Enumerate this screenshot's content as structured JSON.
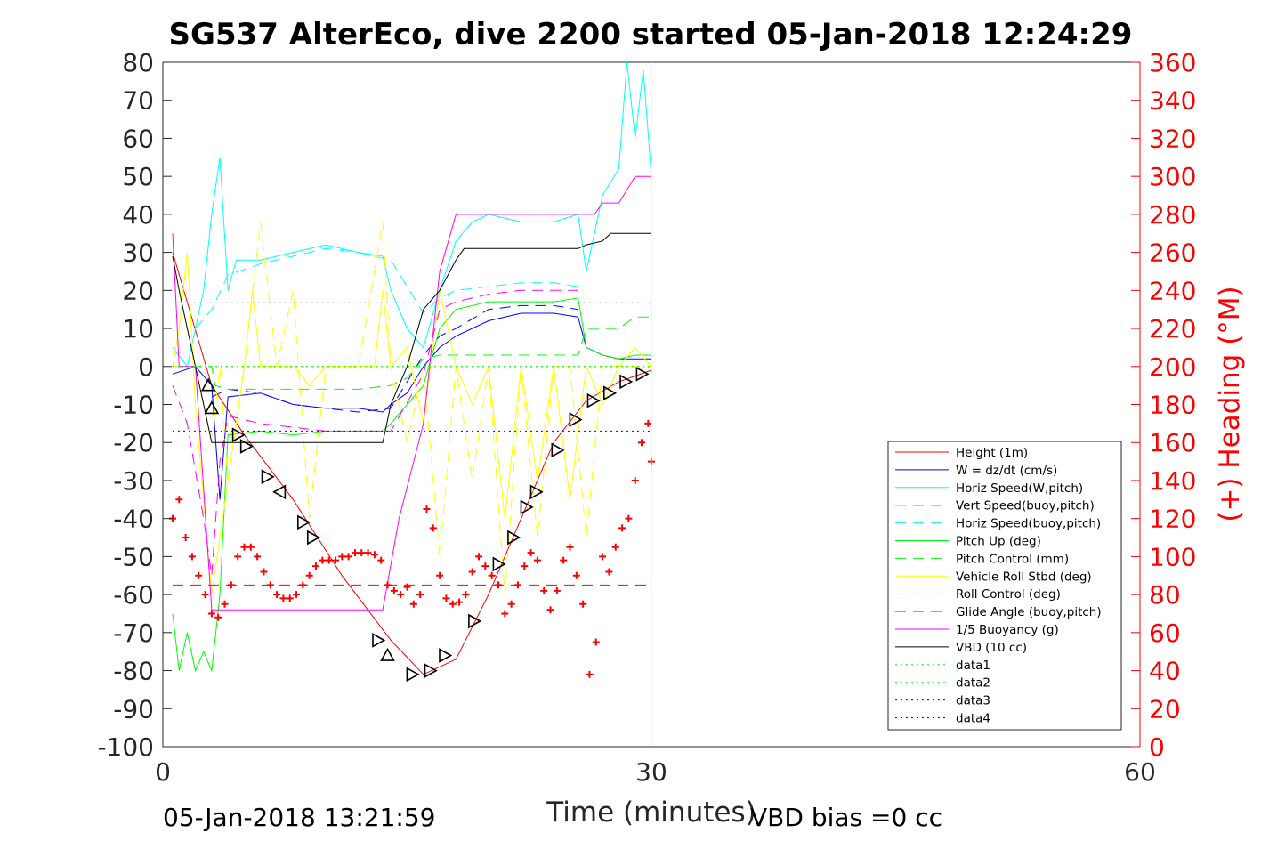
{
  "chart_data": {
    "type": "line",
    "title": "SG537 AlterEco, dive 2200 started 05-Jan-2018 12:24:29",
    "xlabel": "Time (minutes)",
    "ylabel_right": "(+) Heading (°M)",
    "footer_left": "05-Jan-2018 13:21:59",
    "footer_right": "VBD bias =0 cc",
    "xlim": [
      0,
      60
    ],
    "ylim": [
      -100,
      80
    ],
    "y2lim": [
      0,
      360
    ],
    "x_ticks": [
      0,
      30,
      60
    ],
    "x_tick_labels": [
      "0",
      "30",
      "60"
    ],
    "y_ticks": [
      -100,
      -90,
      -80,
      -70,
      -60,
      -50,
      -40,
      -30,
      -20,
      -10,
      0,
      10,
      20,
      30,
      40,
      50,
      60,
      70,
      80
    ],
    "y_tick_labels": [
      "-100",
      "-90",
      "-80",
      "-70",
      "-60",
      "-50",
      "-40",
      "-30",
      "-20",
      "-10",
      "0",
      "10",
      "20",
      "30",
      "40",
      "50",
      "60",
      "70",
      "80"
    ],
    "y2_ticks": [
      0,
      20,
      40,
      60,
      80,
      100,
      120,
      140,
      160,
      180,
      200,
      220,
      240,
      260,
      280,
      300,
      320,
      340,
      360
    ],
    "y2_tick_labels": [
      "0",
      "20",
      "40",
      "60",
      "80",
      "100",
      "120",
      "140",
      "160",
      "180",
      "200",
      "220",
      "240",
      "260",
      "280",
      "300",
      "320",
      "340",
      "360"
    ],
    "right_axis_color": "#ff0000",
    "grid": false,
    "legend_position": "lower-right",
    "legend": [
      {
        "label": "Height (1m)",
        "color": "#ff0000",
        "style": "solid"
      },
      {
        "label": "W = dz/dt (cm/s)",
        "color": "#0000ff",
        "style": "solid"
      },
      {
        "label": "Horiz Speed(W,pitch)",
        "color": "#00ffff",
        "style": "solid"
      },
      {
        "label": "Vert Speed(buoy,pitch)",
        "color": "#0000ff",
        "style": "dashed"
      },
      {
        "label": "Horiz Speed(buoy,pitch)",
        "color": "#00ffff",
        "style": "dashed"
      },
      {
        "label": "Pitch Up (deg)",
        "color": "#00ff00",
        "style": "solid"
      },
      {
        "label": "Pitch Control (mm)",
        "color": "#00ff00",
        "style": "dashed"
      },
      {
        "label": "Vehicle Roll Stbd (deg)",
        "color": "#ffff00",
        "style": "solid"
      },
      {
        "label": "Roll Control (deg)",
        "color": "#ffff00",
        "style": "dashed"
      },
      {
        "label": "Glide Angle (buoy,pitch)",
        "color": "#ff00ff",
        "style": "dashed"
      },
      {
        "label": "1/5 Buoyancy (g)",
        "color": "#ff00ff",
        "style": "solid"
      },
      {
        "label": "VBD (10 cc)",
        "color": "#000000",
        "style": "solid"
      },
      {
        "label": "data1",
        "color": "#00ff00",
        "style": "dotted"
      },
      {
        "label": "data2",
        "color": "#00ff00",
        "style": "dotted"
      },
      {
        "label": "data3",
        "color": "#0000ff",
        "style": "dotted"
      },
      {
        "label": "data4",
        "color": "#0000ff",
        "style": "dotted"
      }
    ],
    "series": [
      {
        "name": "Height (1m)",
        "axis": "left",
        "color": "#ff0000",
        "x": [
          0.6,
          3,
          5,
          8,
          11,
          14,
          16,
          18,
          20,
          22,
          24,
          26,
          28,
          30
        ],
        "y": [
          30,
          -5,
          -18,
          -35,
          -55,
          -72,
          -81,
          -77,
          -60,
          -40,
          -20,
          -9,
          -4,
          -1
        ]
      },
      {
        "name": "W = dz/dt (cm/s)",
        "axis": "left",
        "color": "#0000ff",
        "x": [
          0.6,
          2,
          3,
          3.5,
          4,
          6,
          8,
          10,
          12,
          13.5,
          14,
          15,
          16,
          17,
          18,
          20,
          22,
          24,
          25.5,
          26,
          27,
          28,
          29,
          30
        ],
        "y": [
          -2,
          0,
          -5,
          -35,
          -8,
          -7,
          -10,
          -11,
          -11,
          -12,
          -10,
          -7,
          0,
          5,
          8,
          12,
          14,
          14,
          13,
          5,
          3,
          2,
          2,
          2
        ]
      },
      {
        "name": "Horiz Speed(W,pitch)",
        "axis": "left",
        "color": "#00ffff",
        "x": [
          0.6,
          1.5,
          2.5,
          3,
          3.5,
          4,
          4.5,
          6,
          8,
          10,
          12,
          13.5,
          14,
          15,
          16,
          17,
          18,
          19,
          20,
          22,
          24,
          25.5,
          26,
          27,
          28,
          28.5,
          29,
          29.5,
          30
        ],
        "y": [
          5,
          0,
          20,
          40,
          55,
          20,
          28,
          28,
          30,
          32,
          30,
          29,
          20,
          10,
          5,
          20,
          33,
          38,
          40,
          38,
          38,
          40,
          25,
          45,
          52,
          80,
          60,
          78,
          50
        ]
      },
      {
        "name": "Vert Speed(buoy,pitch)",
        "axis": "left",
        "color": "#0000ff",
        "style": "dashed",
        "x": [
          3,
          4,
          6,
          8,
          10,
          12,
          14,
          16,
          17,
          18,
          20,
          22,
          24,
          25.5
        ],
        "y": [
          -8,
          -6,
          -7,
          -10,
          -11,
          -12,
          -11,
          3,
          8,
          10,
          15,
          16,
          16,
          15
        ]
      },
      {
        "name": "Horiz Speed(buoy,pitch)",
        "axis": "left",
        "color": "#00ffff",
        "style": "dashed",
        "x": [
          2,
          3,
          4,
          6,
          8,
          10,
          12,
          14,
          16,
          17,
          18,
          20,
          22,
          24,
          25.5
        ],
        "y": [
          10,
          15,
          24,
          27,
          29,
          31,
          30,
          28,
          14,
          18,
          20,
          21,
          22,
          22,
          21
        ]
      },
      {
        "name": "Pitch Up (deg)",
        "axis": "left",
        "color": "#00ff00",
        "x": [
          0.6,
          1,
          1.5,
          2,
          2.5,
          3,
          3.5,
          4,
          6,
          8,
          10,
          12,
          13.5,
          14,
          15,
          16,
          17,
          18,
          20,
          22,
          24,
          25.5,
          26,
          27,
          28,
          29,
          30
        ],
        "y": [
          -65,
          -80,
          -70,
          -80,
          -75,
          -80,
          -60,
          -18,
          -17,
          -18,
          -17,
          -17,
          -17,
          -15,
          -10,
          -5,
          10,
          15,
          17,
          17,
          17,
          18,
          5,
          3,
          2,
          3,
          3
        ]
      },
      {
        "name": "Pitch Control (mm)",
        "axis": "left",
        "color": "#00ff00",
        "style": "dashed",
        "x": [
          0.6,
          3,
          3.2,
          4,
          6,
          8,
          10,
          12,
          14,
          15,
          16,
          17,
          18,
          20,
          22,
          24,
          25.5,
          26,
          27,
          28,
          29,
          30
        ],
        "y": [
          0,
          0,
          -5,
          -6,
          -6,
          -6,
          -6,
          -6,
          -5,
          -3,
          2,
          3,
          3,
          3,
          3,
          3,
          3,
          10,
          10,
          10,
          13,
          13
        ]
      },
      {
        "name": "Vehicle Roll Stbd (deg)",
        "axis": "left",
        "color": "#ffff00",
        "x": [
          0.6,
          1,
          1.5,
          2,
          3,
          4,
          5,
          5.5,
          6,
          7,
          8,
          9,
          10,
          11,
          12,
          13,
          13.5,
          14,
          15,
          16,
          17,
          18,
          19,
          20,
          21,
          22,
          23,
          24,
          25,
          26,
          27,
          28,
          29,
          30
        ],
        "y": [
          0,
          10,
          30,
          -10,
          -60,
          -30,
          0,
          20,
          0,
          0,
          0,
          -5,
          0,
          0,
          0,
          0,
          20,
          0,
          5,
          -15,
          20,
          0,
          -10,
          0,
          -40,
          0,
          -30,
          0,
          -35,
          0,
          -10,
          0,
          5,
          0
        ]
      },
      {
        "name": "Roll Control (deg)",
        "axis": "left",
        "color": "#ffff00",
        "style": "dashed",
        "x": [
          0.6,
          2,
          3,
          3.5,
          4,
          5,
          6,
          7,
          8,
          9,
          10,
          12,
          13.5,
          14,
          15,
          16,
          17,
          18,
          19,
          20,
          21,
          22,
          23,
          24,
          25,
          26,
          27,
          28,
          29,
          30
        ],
        "y": [
          0,
          0,
          -20,
          0,
          -30,
          0,
          38,
          0,
          20,
          -40,
          0,
          0,
          38,
          0,
          -20,
          0,
          -50,
          0,
          -30,
          0,
          -60,
          0,
          -45,
          0,
          0,
          -45,
          0,
          0,
          0,
          0
        ]
      },
      {
        "name": "Glide Angle (buoy,pitch)",
        "axis": "left",
        "color": "#ff00ff",
        "style": "dashed",
        "x": [
          0.6,
          1.5,
          2.5,
          3,
          3.5,
          4,
          6,
          8,
          10,
          12,
          14,
          16,
          17,
          18,
          20,
          22,
          24,
          25.5
        ],
        "y": [
          -5,
          -15,
          -40,
          -55,
          -25,
          -13,
          -15,
          -16,
          -17,
          -17,
          -17,
          -2,
          15,
          17,
          19,
          20,
          20,
          20
        ]
      },
      {
        "name": "1/5 Buoyancy (g)",
        "axis": "left",
        "color": "#ff00ff",
        "x": [
          0.6,
          1,
          2,
          3,
          4,
          6,
          8,
          10,
          12,
          13.5,
          14.5,
          16,
          17,
          18,
          20,
          24,
          26,
          26.5,
          27,
          28,
          29,
          30
        ],
        "y": [
          35,
          0,
          0,
          -64,
          -64,
          -64,
          -64,
          -64,
          -64,
          -64,
          -40,
          -15,
          25,
          40,
          40,
          40,
          40,
          40,
          43,
          43,
          50,
          50
        ]
      },
      {
        "name": "VBD (10 cc)",
        "axis": "left",
        "color": "#000000",
        "x": [
          0.6,
          1,
          2,
          2.5,
          3,
          4,
          6,
          8,
          10,
          12,
          13.5,
          14,
          15,
          16,
          17,
          18,
          18.5,
          19,
          20,
          22,
          24,
          25.5,
          26,
          27,
          27.5,
          28,
          30
        ],
        "y": [
          29,
          20,
          0,
          -10,
          -20,
          -20,
          -20,
          -20,
          -20,
          -20,
          -20,
          -10,
          0,
          15,
          20,
          28,
          31,
          31,
          31,
          31,
          31,
          31,
          32,
          33,
          35,
          35,
          35
        ]
      },
      {
        "name": "data1",
        "axis": "left",
        "color": "#00ff00",
        "style": "dotted",
        "x": [
          0.6,
          30
        ],
        "y": [
          0,
          0
        ]
      },
      {
        "name": "data2",
        "axis": "left",
        "color": "#00ff00",
        "style": "dotted",
        "x": [
          0.6,
          30
        ],
        "y": [
          0,
          0
        ]
      },
      {
        "name": "data3",
        "axis": "left",
        "color": "#0000ff",
        "style": "dotted",
        "x": [
          0.6,
          30
        ],
        "y": [
          16.7,
          16.7
        ]
      },
      {
        "name": "data4",
        "axis": "left",
        "color": "#0000ff",
        "style": "dotted",
        "x": [
          0.6,
          30
        ],
        "y": [
          -17,
          -17
        ]
      },
      {
        "name": "Reference line",
        "axis": "left",
        "color": "#ff0000",
        "style": "dashed",
        "x": [
          0.6,
          30
        ],
        "y": [
          -57.5,
          -57.5
        ]
      }
    ],
    "triangle_markers": {
      "color": "#000000",
      "x": [
        2.8,
        3.0,
        4.6,
        5.1,
        6.4,
        7.2,
        8.6,
        9.2,
        13.2,
        13.8,
        15.3,
        16.4,
        17.3,
        19.1,
        20.6,
        21.5,
        22.3,
        22.9,
        24.2,
        25.3,
        26.4,
        27.4,
        28.4,
        29.4
      ],
      "y": [
        -5,
        -11,
        -18,
        -21,
        -29,
        -33,
        -41,
        -45,
        -72,
        -76,
        -81,
        -80,
        -76,
        -67,
        -52,
        -45,
        -37,
        -33,
        -22,
        -14,
        -9,
        -7,
        -4,
        -2
      ],
      "dir": [
        "up",
        "up",
        "right",
        "right",
        "right",
        "left",
        "right",
        "right",
        "right",
        "up",
        "right",
        "right",
        "right",
        "right",
        "right",
        "right",
        "right",
        "right",
        "right",
        "right",
        "right",
        "right",
        "right",
        "right"
      ]
    },
    "heading_points": {
      "axis": "right",
      "color": "#ff0000",
      "marker": "+",
      "x": [
        0.6,
        1.0,
        1.4,
        1.8,
        2.2,
        2.6,
        3.0,
        3.4,
        3.8,
        4.2,
        4.6,
        5.0,
        5.4,
        5.8,
        6.2,
        6.6,
        7.0,
        7.4,
        7.8,
        8.2,
        8.6,
        9.0,
        9.4,
        9.8,
        10.2,
        10.6,
        11.0,
        11.4,
        11.8,
        12.2,
        12.6,
        13.0,
        13.4,
        13.8,
        14.2,
        14.6,
        15.0,
        15.4,
        15.8,
        16.2,
        16.6,
        17.0,
        17.4,
        17.8,
        18.2,
        18.6,
        19.0,
        19.4,
        19.8,
        20.2,
        20.6,
        21.0,
        21.4,
        21.8,
        22.2,
        22.6,
        23.0,
        23.4,
        23.8,
        24.2,
        24.6,
        25.0,
        25.4,
        25.8,
        26.2,
        26.6,
        27.0,
        27.4,
        27.8,
        28.2,
        28.6,
        29.0,
        29.4,
        29.8,
        30.0
      ],
      "y": [
        120,
        130,
        110,
        100,
        90,
        80,
        70,
        68,
        75,
        85,
        100,
        105,
        105,
        100,
        92,
        85,
        80,
        78,
        78,
        80,
        85,
        90,
        95,
        98,
        98,
        98,
        100,
        100,
        102,
        102,
        102,
        101,
        98,
        85,
        82,
        80,
        84,
        75,
        80,
        125,
        115,
        90,
        78,
        75,
        76,
        80,
        92,
        100,
        95,
        90,
        85,
        70,
        75,
        85,
        95,
        102,
        98,
        82,
        72,
        82,
        98,
        105,
        90,
        75,
        38,
        55,
        100,
        92,
        105,
        115,
        120,
        140,
        160,
        170,
        150
      ]
    }
  }
}
